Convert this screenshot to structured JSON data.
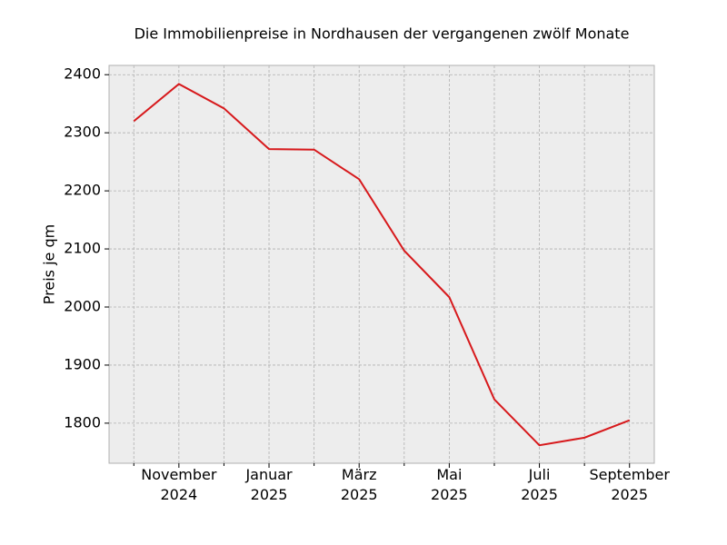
{
  "chart_data": {
    "type": "line",
    "title": "Die Immobilienpreise in Nordhausen der vergangenen zwölf Monate",
    "y_label": "Preis je qm",
    "categories": [
      null,
      "November\n2024",
      null,
      "Januar\n2025",
      null,
      "März\n2025",
      null,
      "Mai\n2025",
      null,
      "Juli\n2025",
      null,
      "September\n2025"
    ],
    "series": [
      {
        "name": "Preis je qm",
        "color": "#d7191c",
        "values": [
          2320,
          2384,
          2342,
          2272,
          2271,
          2220,
          2097,
          2017,
          1841,
          1762,
          1775,
          1805
        ]
      }
    ],
    "ylim": [
      1731,
      2416
    ],
    "yticks": [
      1800,
      1900,
      2000,
      2100,
      2200,
      2300,
      2400
    ],
    "grid": true
  }
}
